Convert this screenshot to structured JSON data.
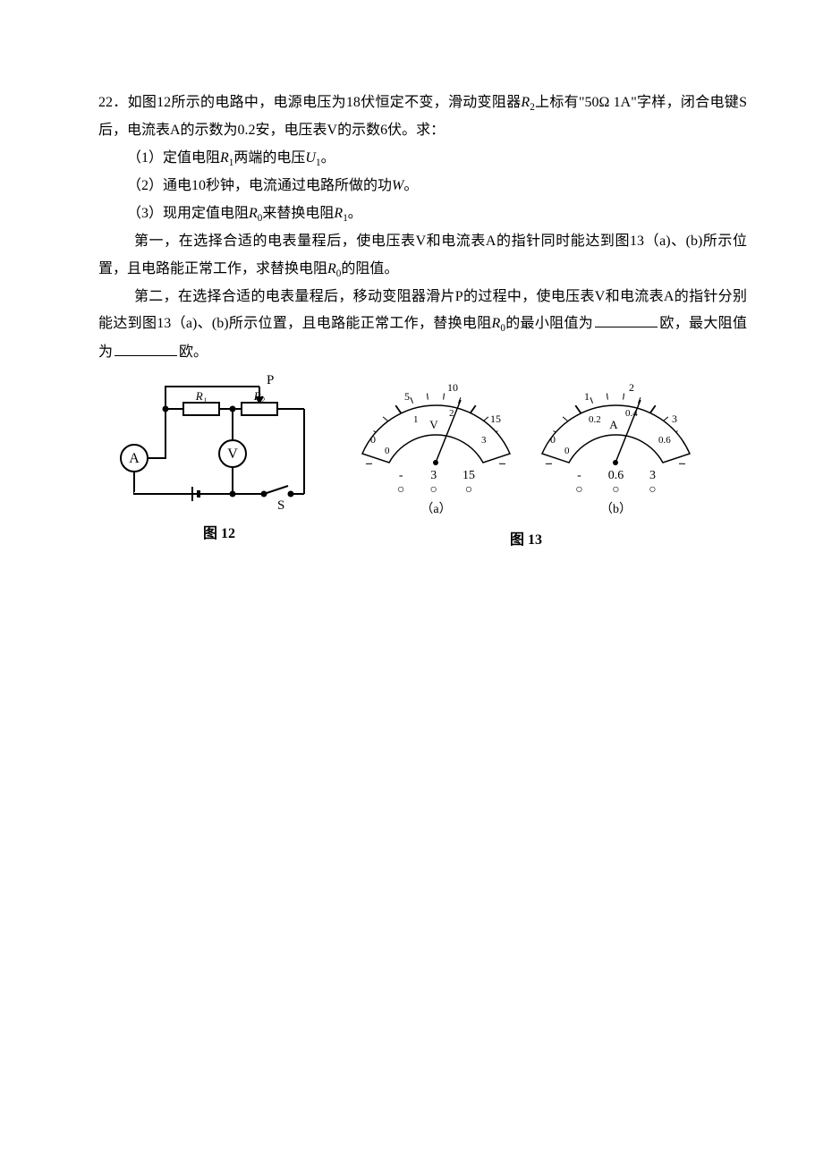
{
  "q_num": "22",
  "p_main": "．如图12所示的电路中，电源电压为18伏恒定不变，滑动变阻器",
  "p_main2": "上标有\"50Ω 1A\"字样，闭合电键S后，电流表A的示数为0.2安，电压表V的示数6伏。求：",
  "sub1_pre": "（1）定值电阻",
  "sub1_post": "两端的电压",
  "sub1_end": "。",
  "sub2_pre": "（2）通电10秒钟，电流通过电路所做的功",
  "sub2_end": "。",
  "sub3_pre": "（3）现用定值电阻",
  "sub3_mid": "来替换电阻",
  "sub3_end": "。",
  "para1": "第一，在选择合适的电表量程后，使电压表V和电流表A的指针同时能达到图13（a)、(b)所示位置，且电路能正常工作，求替换电阻",
  "para1_end": "的阻值。",
  "para2": "第二，在选择合适的电表量程后，移动变阻器滑片P的过程中，使电压表V和电流表A的指针分别能达到图13（a)、(b)所示位置，且电路能正常工作，替换电阻",
  "para2_mid": "的最小阻值为",
  "para2_mid2": "欧，最大阻值为",
  "para2_end": "欧。",
  "R1": "R",
  "R1_sub": "1",
  "R2": "R",
  "R2_sub": "2",
  "R0": "R",
  "R0_sub": "0",
  "U1": "U",
  "U1_sub": "1",
  "W": "W",
  "fig12_caption": "图 12",
  "fig13_caption": "图 13",
  "circuit": {
    "A": "A",
    "V": "V",
    "S": "S",
    "P": "P",
    "R1": "R₁",
    "R2": "R₂"
  },
  "voltmeter": {
    "top": [
      "0",
      "5",
      "10",
      "15"
    ],
    "bottom": [
      "0",
      "1",
      "2",
      "3"
    ],
    "unit": "V",
    "ranges": [
      {
        "top": "-",
        "bot": "○"
      },
      {
        "top": "3",
        "bot": "○"
      },
      {
        "top": "15",
        "bot": "○"
      }
    ],
    "sub": "（a）"
  },
  "ammeter": {
    "top": [
      "0",
      "1",
      "2",
      "3"
    ],
    "bottom": [
      "0",
      "0.2",
      "0.4",
      "0.6"
    ],
    "unit": "A",
    "ranges": [
      {
        "top": "-",
        "bot": "○"
      },
      {
        "top": "0.6",
        "bot": "○"
      },
      {
        "top": "3",
        "bot": "○"
      }
    ],
    "sub": "（b）"
  },
  "colors": {
    "text": "#000000",
    "bg": "#ffffff",
    "stroke": "#000000"
  }
}
